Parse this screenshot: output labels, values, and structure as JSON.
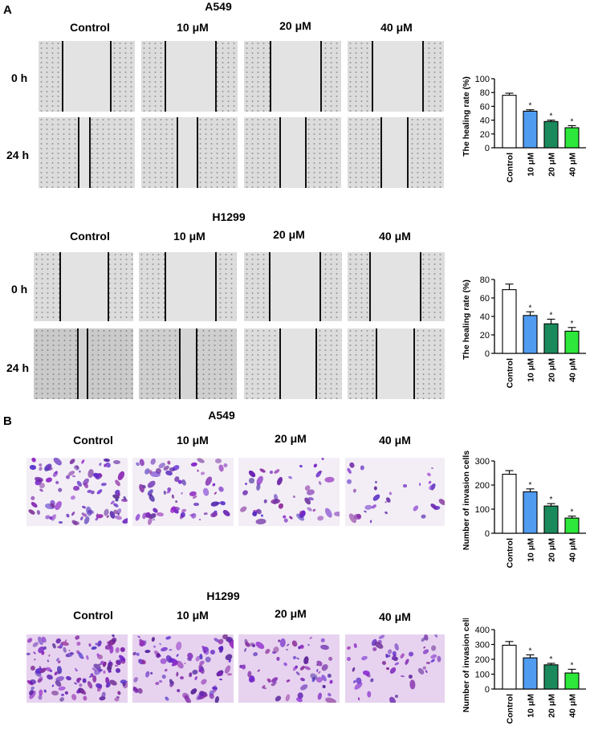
{
  "panels": {
    "A": {
      "letter": "A"
    },
    "B": {
      "letter": "B"
    }
  },
  "groups": [
    "Control",
    "10 μM",
    "20 μM",
    "40 μM"
  ],
  "times": [
    "0 h",
    "24 h"
  ],
  "migration": {
    "a549": {
      "title": "A549"
    },
    "h1299": {
      "title": "H1299"
    }
  },
  "invasion": {
    "a549": {
      "title": "A549"
    },
    "h1299": {
      "title": "H1299"
    }
  },
  "colors": {
    "control": "#ffffff",
    "c10": "#4f9cf0",
    "c20": "#1a8a5c",
    "c40": "#2de83a",
    "stain": "#6b2fa8"
  },
  "chart_data": [
    {
      "type": "bar",
      "id": "a549-healing",
      "ylabel": "The healing rate (%)",
      "categories": [
        "Control",
        "10 μM",
        "20 μM",
        "40 μM"
      ],
      "values": [
        76,
        53,
        38,
        29
      ],
      "errors": [
        3,
        2,
        2,
        3
      ],
      "significance": [
        "",
        "*",
        "*",
        "*"
      ],
      "ylim": [
        0,
        100
      ],
      "yticks": [
        0,
        20,
        40,
        60,
        80,
        100
      ]
    },
    {
      "type": "bar",
      "id": "h1299-healing",
      "ylabel": "The healing rate (%)",
      "categories": [
        "Control",
        "10 μM",
        "20 μM",
        "40 μM"
      ],
      "values": [
        69,
        41,
        32,
        24
      ],
      "errors": [
        6,
        4,
        5,
        4
      ],
      "significance": [
        "",
        "*",
        "*",
        "*"
      ],
      "ylim": [
        0,
        80
      ],
      "yticks": [
        0,
        20,
        40,
        60,
        80
      ]
    },
    {
      "type": "bar",
      "id": "a549-invasion",
      "ylabel": "Number of invasion cells",
      "categories": [
        "Control",
        "10 μM",
        "20 μM",
        "40 μM"
      ],
      "values": [
        245,
        172,
        113,
        63
      ],
      "errors": [
        15,
        12,
        10,
        8
      ],
      "significance": [
        "",
        "*",
        "*",
        "*"
      ],
      "ylim": [
        0,
        300
      ],
      "yticks": [
        0,
        100,
        200,
        300
      ]
    },
    {
      "type": "bar",
      "id": "h1299-invasion",
      "ylabel": "Number of invasion cells",
      "categories": [
        "Control",
        "10 μM",
        "20 μM",
        "40 μM"
      ],
      "values": [
        295,
        210,
        163,
        108
      ],
      "errors": [
        25,
        20,
        10,
        25
      ],
      "significance": [
        "",
        "*",
        "*",
        "*"
      ],
      "ylim": [
        0,
        400
      ],
      "yticks": [
        0,
        100,
        200,
        300,
        400
      ]
    }
  ]
}
